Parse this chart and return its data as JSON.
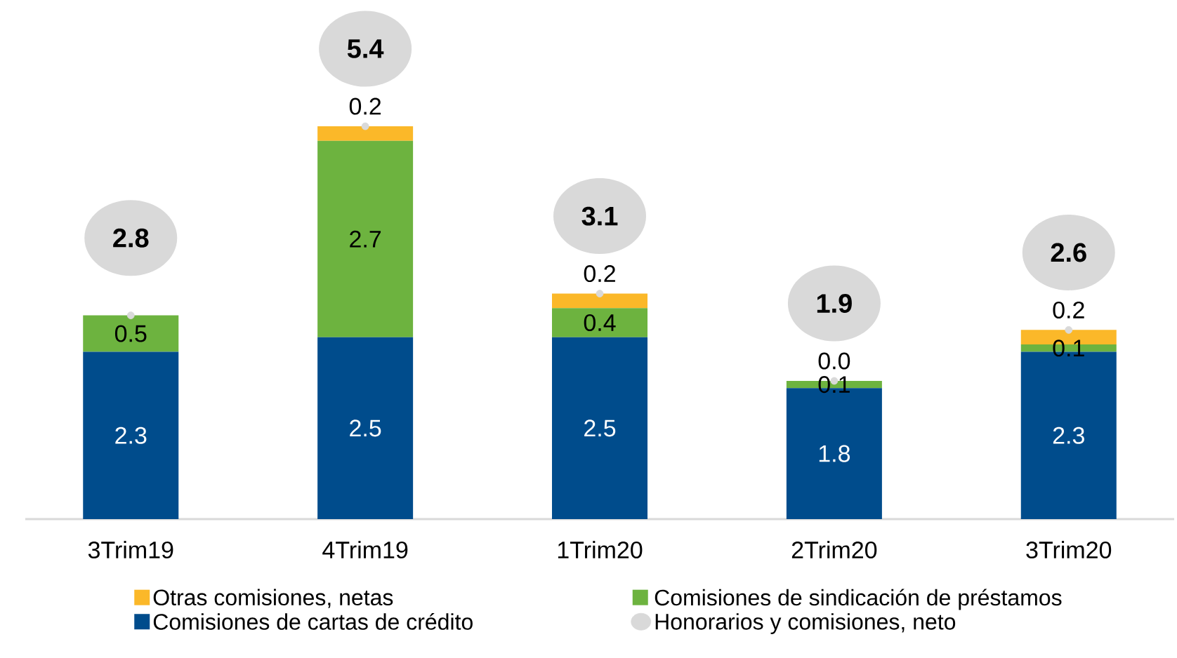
{
  "chart_data": {
    "type": "bar",
    "stacked": true,
    "data_labels": true,
    "legend": "bottom",
    "categories": [
      "3Trim19",
      "4Trim19",
      "1Trim20",
      "2Trim20",
      "3Trim20"
    ],
    "series": [
      {
        "name": "Comisiones de cartas de crédito",
        "color": "#004c8c",
        "values": [
          2.3,
          2.5,
          2.5,
          1.8,
          2.3
        ]
      },
      {
        "name": "Comisiones de sindicación de préstamos",
        "color": "#6db33f",
        "values": [
          0.5,
          2.7,
          0.4,
          0.1,
          0.1
        ]
      },
      {
        "name": "Otras comisiones, netas",
        "color": "#fbb829",
        "values": [
          null,
          0.2,
          0.2,
          0.0,
          0.2
        ],
        "value_labels": [
          null,
          "0.2",
          "0.2",
          "0.0",
          "0.2"
        ]
      },
      {
        "name": "Honorarios y comisiones, neto",
        "type": "scatter",
        "marker": "circle",
        "color": "#d9d9d9",
        "values": [
          2.8,
          5.4,
          3.1,
          1.9,
          2.6
        ]
      }
    ]
  }
}
